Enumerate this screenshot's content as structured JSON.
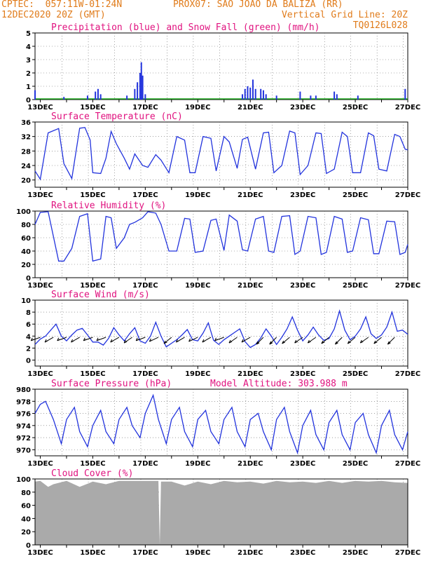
{
  "header": {
    "left1": "CPTEC:  057:11W-01:24N",
    "mid1": "PROX07: SAO JOAO DA BALIZA (RR)",
    "left2": "12DEC2020 20Z (GMT)",
    "right2": "Vertical Grid Line: 20Z",
    "right3": "TQ0126L028"
  },
  "colors": {
    "header": "#e07b1a",
    "title": "#e0127f",
    "line": "#2233dd",
    "snow": "#22aa22",
    "cloud": "#aaaaaa"
  },
  "x_ticks": [
    "13DEC",
    "15DEC",
    "17DEC",
    "19DEC",
    "21DEC",
    "23DEC",
    "25DEC",
    "27DEC"
  ],
  "chart_data": [
    {
      "id": "precip",
      "type": "bar",
      "title": "Precipitation (blue) and Snow Fall (green) (mm/h)",
      "ylim": [
        0,
        5
      ],
      "yticks": [
        "0",
        "1",
        "2",
        "3",
        "4",
        "5"
      ],
      "series": [
        {
          "name": "Precipitation",
          "points": [
            [
              12.8,
              0.7
            ],
            [
              13.9,
              0.2
            ],
            [
              14.8,
              0.3
            ],
            [
              15.1,
              0.6
            ],
            [
              15.2,
              0.8
            ],
            [
              15.3,
              0.4
            ],
            [
              16.3,
              0.3
            ],
            [
              16.6,
              0.8
            ],
            [
              16.7,
              1.3
            ],
            [
              16.8,
              2.0
            ],
            [
              16.85,
              2.8
            ],
            [
              16.9,
              1.8
            ],
            [
              17.0,
              0.4
            ],
            [
              20.7,
              0.4
            ],
            [
              20.8,
              0.8
            ],
            [
              20.9,
              1.0
            ],
            [
              21.0,
              0.9
            ],
            [
              21.1,
              1.5
            ],
            [
              21.2,
              0.8
            ],
            [
              21.4,
              0.8
            ],
            [
              21.5,
              0.7
            ],
            [
              21.6,
              0.4
            ],
            [
              22.0,
              0.3
            ],
            [
              22.9,
              0.6
            ],
            [
              23.3,
              0.3
            ],
            [
              23.5,
              0.3
            ],
            [
              24.2,
              0.6
            ],
            [
              24.3,
              0.4
            ],
            [
              25.1,
              0.3
            ],
            [
              26.9,
              0.8
            ]
          ]
        },
        {
          "name": "Snow Fall",
          "points": []
        }
      ]
    },
    {
      "id": "temp",
      "type": "line",
      "title": "Surface Temperature (nC)",
      "ylim": [
        18,
        36
      ],
      "yticks": [
        "20",
        "24",
        "28",
        "32",
        "36"
      ],
      "series": [
        {
          "name": "",
          "x": [
            12.8,
            13.0,
            13.3,
            13.7,
            13.9,
            14.2,
            14.5,
            14.7,
            14.9,
            15.0,
            15.3,
            15.5,
            15.7,
            15.9,
            16.2,
            16.4,
            16.6,
            16.9,
            17.1,
            17.4,
            17.6,
            17.9,
            18.2,
            18.5,
            18.7,
            18.9,
            19.2,
            19.5,
            19.7,
            20.0,
            20.2,
            20.5,
            20.7,
            20.9,
            21.2,
            21.5,
            21.7,
            21.9,
            22.2,
            22.5,
            22.7,
            22.9,
            23.2,
            23.5,
            23.7,
            23.9,
            24.2,
            24.5,
            24.7,
            24.9,
            25.2,
            25.5,
            25.7,
            25.9,
            26.2,
            26.5,
            26.7,
            26.9,
            27.0
          ],
          "y": [
            22.5,
            20.2,
            33,
            34.2,
            24.5,
            20.4,
            34.3,
            34.5,
            31,
            22,
            21.8,
            26,
            33.4,
            30,
            26,
            23,
            27.2,
            24,
            23.5,
            27,
            25.5,
            22,
            32,
            31,
            22,
            22,
            32,
            31.5,
            22.5,
            32,
            30.5,
            23.2,
            31.2,
            31.8,
            23,
            33,
            33.2,
            22,
            24,
            33.5,
            33,
            21.5,
            24,
            33,
            32.8,
            21.8,
            23,
            33.2,
            32,
            22,
            22,
            33,
            32.2,
            23,
            22.5,
            32.6,
            32,
            28.5,
            28.3
          ]
        }
      ]
    },
    {
      "id": "rh",
      "type": "line",
      "title": "Relative Humidity (%)",
      "ylim": [
        0,
        100
      ],
      "yticks": [
        "0",
        "20",
        "40",
        "60",
        "80",
        "100"
      ],
      "series": [
        {
          "name": "",
          "x": [
            12.8,
            13.0,
            13.3,
            13.7,
            13.9,
            14.2,
            14.5,
            14.8,
            15.0,
            15.3,
            15.5,
            15.7,
            15.9,
            16.2,
            16.4,
            16.6,
            16.9,
            17.1,
            17.4,
            17.6,
            17.9,
            18.2,
            18.5,
            18.7,
            18.9,
            19.2,
            19.5,
            19.7,
            20.0,
            20.2,
            20.5,
            20.7,
            20.9,
            21.2,
            21.5,
            21.7,
            21.9,
            22.2,
            22.5,
            22.7,
            22.9,
            23.2,
            23.5,
            23.7,
            23.9,
            24.2,
            24.5,
            24.7,
            24.9,
            25.2,
            25.5,
            25.7,
            25.9,
            26.2,
            26.5,
            26.7,
            26.9,
            27.0
          ],
          "y": [
            80,
            98,
            99,
            25,
            25,
            44,
            92,
            96,
            25,
            28,
            92,
            90,
            44,
            60,
            80,
            83,
            90,
            99,
            97,
            80,
            40,
            40,
            89,
            88,
            38,
            40,
            86,
            88,
            41,
            94,
            85,
            42,
            40,
            88,
            92,
            40,
            38,
            92,
            93,
            35,
            40,
            92,
            90,
            35,
            38,
            92,
            88,
            38,
            40,
            90,
            87,
            36,
            36,
            85,
            84,
            35,
            38,
            50
          ]
        }
      ]
    },
    {
      "id": "wind",
      "type": "line",
      "title": "Surface Wind (m/s)",
      "ylim": [
        -1,
        10
      ],
      "yticks": [
        "0",
        "2",
        "4",
        "6",
        "8",
        "10"
      ],
      "series": [
        {
          "name": "",
          "x": [
            12.8,
            13.0,
            13.2,
            13.4,
            13.6,
            13.8,
            14.0,
            14.2,
            14.4,
            14.6,
            14.8,
            15.0,
            15.2,
            15.4,
            15.6,
            15.8,
            16.0,
            16.2,
            16.4,
            16.6,
            16.8,
            17.0,
            17.2,
            17.4,
            17.6,
            17.8,
            18.0,
            18.2,
            18.4,
            18.6,
            18.8,
            19.0,
            19.2,
            19.4,
            19.6,
            19.8,
            20.0,
            20.2,
            20.4,
            20.6,
            20.8,
            21.0,
            21.2,
            21.4,
            21.6,
            21.8,
            22.0,
            22.2,
            22.4,
            22.6,
            22.8,
            23.0,
            23.2,
            23.4,
            23.6,
            23.8,
            24.0,
            24.2,
            24.4,
            24.6,
            24.8,
            25.0,
            25.2,
            25.4,
            25.6,
            25.8,
            26.0,
            26.2,
            26.4,
            26.6,
            26.8,
            27.0
          ],
          "y": [
            2.6,
            3.5,
            4.0,
            5.0,
            6.0,
            4.0,
            3.2,
            4.2,
            5.0,
            5.3,
            4.2,
            3.0,
            3.0,
            2.5,
            3.6,
            5.4,
            4.2,
            3.2,
            4.4,
            5.4,
            3.2,
            2.8,
            4.0,
            6.3,
            4.0,
            2.2,
            2.8,
            3.4,
            4.2,
            5.1,
            3.4,
            3.2,
            4.5,
            6.2,
            3.3,
            2.6,
            3.4,
            4.0,
            4.6,
            5.2,
            3.1,
            2.1,
            2.6,
            3.7,
            5.2,
            4.0,
            2.6,
            3.8,
            5.2,
            7.2,
            5.0,
            3.2,
            4.2,
            5.5,
            4.2,
            3.3,
            3.6,
            5.2,
            8.2,
            5.0,
            3.4,
            4.0,
            5.2,
            7.2,
            4.4,
            3.6,
            4.2,
            5.5,
            8.0,
            4.8,
            5.0,
            4.3
          ]
        }
      ]
    },
    {
      "id": "pressure",
      "type": "line",
      "title": "Surface Pressure (hPa)",
      "subtitle": "Model Altitude: 303.988 m",
      "ylim": [
        969,
        980
      ],
      "yticks": [
        "970",
        "972",
        "974",
        "976",
        "978",
        "980"
      ],
      "series": [
        {
          "name": "",
          "x": [
            12.8,
            13.0,
            13.2,
            13.5,
            13.8,
            14.0,
            14.3,
            14.5,
            14.8,
            15.0,
            15.3,
            15.5,
            15.8,
            16.0,
            16.3,
            16.5,
            16.8,
            17.0,
            17.3,
            17.5,
            17.8,
            18.0,
            18.3,
            18.5,
            18.8,
            19.0,
            19.3,
            19.5,
            19.8,
            20.0,
            20.3,
            20.5,
            20.8,
            21.0,
            21.3,
            21.5,
            21.8,
            22.0,
            22.3,
            22.5,
            22.8,
            23.0,
            23.3,
            23.5,
            23.8,
            24.0,
            24.3,
            24.5,
            24.8,
            25.0,
            25.3,
            25.5,
            25.8,
            26.0,
            26.3,
            26.5,
            26.8,
            27.0
          ],
          "y": [
            976,
            977.5,
            978,
            975,
            971,
            975,
            977,
            973,
            970.5,
            974,
            976.5,
            973,
            971,
            975,
            977,
            974,
            972,
            976,
            979,
            975,
            971,
            975,
            977,
            973,
            970.5,
            975,
            976.5,
            973,
            971,
            975,
            977,
            973,
            970.5,
            975,
            976,
            973,
            970,
            975,
            977,
            973,
            969.5,
            974,
            976.5,
            972.5,
            970,
            974.5,
            976.5,
            972.5,
            970,
            974.5,
            976,
            972.5,
            969.5,
            974,
            976.5,
            972.5,
            970,
            973
          ]
        }
      ]
    },
    {
      "id": "cloud",
      "type": "area",
      "title": "Cloud Cover (%)",
      "ylim": [
        0,
        100
      ],
      "yticks": [
        "0",
        "20",
        "40",
        "60",
        "80",
        "100"
      ],
      "series": [
        {
          "name": "",
          "x": [
            12.8,
            13.0,
            13.3,
            13.5,
            14.0,
            14.5,
            15.0,
            15.5,
            16.0,
            16.5,
            17.0,
            17.5,
            17.55,
            17.6,
            18.0,
            18.5,
            19.0,
            19.5,
            20.0,
            20.5,
            21.0,
            21.5,
            22.0,
            22.5,
            23.0,
            23.5,
            24.0,
            24.5,
            25.0,
            25.5,
            26.0,
            26.5,
            27.0
          ],
          "y": [
            96,
            97,
            88,
            92,
            97,
            88,
            96,
            92,
            97,
            97,
            97,
            97,
            0,
            96,
            96,
            90,
            96,
            92,
            97,
            95,
            96,
            93,
            97,
            95,
            96,
            94,
            97,
            94,
            97,
            96,
            97,
            95,
            94
          ]
        }
      ]
    }
  ]
}
